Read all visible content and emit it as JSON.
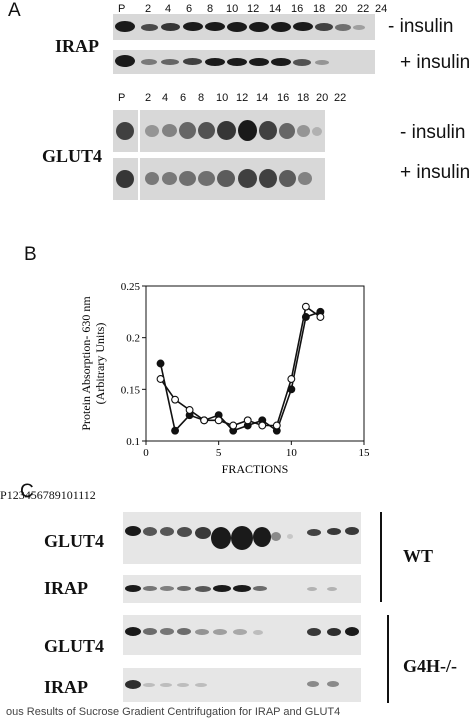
{
  "panel_a": {
    "letter": "A",
    "irap_label": "IRAP",
    "glut4_label": "GLUT4",
    "minus_insulin": "- insulin",
    "plus_insulin": "+ insulin",
    "irap_lanes": [
      "P",
      "2",
      "4",
      "6",
      "8",
      "10",
      "12",
      "14",
      "16",
      "18",
      "20",
      "22",
      "24"
    ],
    "glut4_lanes": [
      "P",
      "2",
      "4",
      "6",
      "8",
      "10",
      "12",
      "14",
      "16",
      "18",
      "20",
      "22"
    ]
  },
  "panel_b": {
    "letter": "B"
  },
  "chart_data": {
    "type": "line",
    "title": "",
    "xlabel": "FRACTIONS",
    "ylabel": "Protein Absorption- 630 nm\n(Arbitrary Units)",
    "xlim": [
      0,
      15
    ],
    "ylim": [
      0.1,
      0.25
    ],
    "x_ticks": [
      "0",
      "5",
      "10",
      "15"
    ],
    "y_ticks": [
      "0.1",
      "0.15",
      "0.2",
      "0.25"
    ],
    "grid": false,
    "series": [
      {
        "marker": "filled",
        "x": [
          1,
          2,
          3,
          4,
          5,
          6,
          7,
          8,
          9,
          10,
          11,
          12
        ],
        "y": [
          0.175,
          0.11,
          0.125,
          0.12,
          0.125,
          0.11,
          0.115,
          0.12,
          0.11,
          0.15,
          0.22,
          0.225
        ]
      },
      {
        "marker": "open",
        "x": [
          1,
          2,
          3,
          4,
          5,
          6,
          7,
          8,
          9,
          10,
          11,
          12
        ],
        "y": [
          0.16,
          0.14,
          0.13,
          0.12,
          0.12,
          0.115,
          0.12,
          0.115,
          0.115,
          0.16,
          0.23,
          0.22
        ]
      }
    ]
  },
  "panel_c": {
    "letter": "C",
    "lanes": [
      "P",
      "1",
      "2",
      "3",
      "4",
      "5",
      "6",
      "7",
      "8",
      "9",
      "10",
      "11",
      "12"
    ],
    "glut4_label": "GLUT4",
    "irap_label": "IRAP",
    "wt_label": "WT",
    "g4h_label": "G4H-/-"
  },
  "caption": "ous Results of Sucrose Gradient Centrifugation for IRAP and GLUT4"
}
